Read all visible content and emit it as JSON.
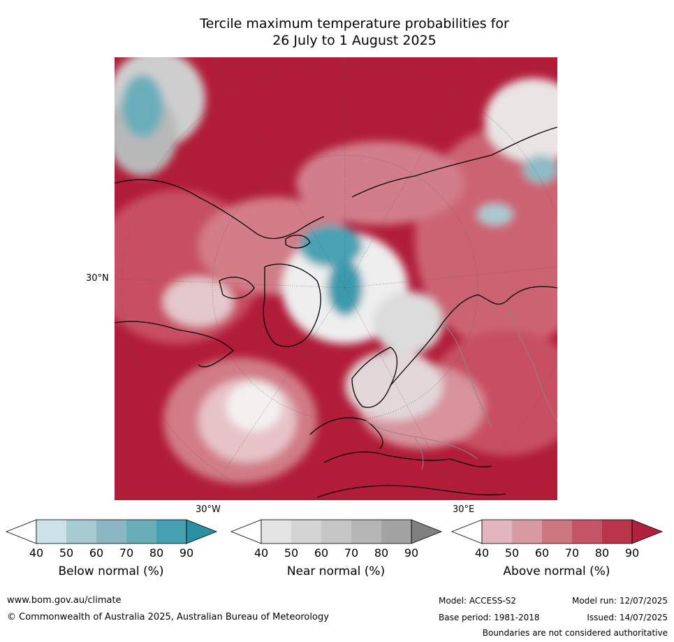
{
  "title_line1": "Tercile maximum temperature probabilities for",
  "title_line2": "26 July to 1 August 2025",
  "map": {
    "projection": "north-polar-stereographic",
    "labels": {
      "lat_30n": "30°N",
      "lon_30w": "30°W",
      "lon_30e": "30°E"
    }
  },
  "legends": [
    {
      "title": "Below normal (%)",
      "ticks": [
        "40",
        "50",
        "60",
        "70",
        "80",
        "90"
      ],
      "colors": [
        "#ffffff",
        "#cbe2e8",
        "#a7c9d0",
        "#8bb7c2",
        "#69adb9",
        "#45a0b1",
        "#2a8fa3"
      ]
    },
    {
      "title": "Near normal (%)",
      "ticks": [
        "40",
        "50",
        "60",
        "70",
        "80",
        "90"
      ],
      "colors": [
        "#ffffff",
        "#e4e4e4",
        "#d4d4d4",
        "#c6c6c6",
        "#b5b5b5",
        "#a3a3a3",
        "#808080"
      ]
    },
    {
      "title": "Above normal (%)",
      "ticks": [
        "40",
        "50",
        "60",
        "70",
        "80",
        "90"
      ],
      "colors": [
        "#ffffff",
        "#e3b6bd",
        "#d89aa3",
        "#cc7680",
        "#c55566",
        "#b8354a",
        "#b0203f"
      ]
    }
  ],
  "footer": {
    "url": "www.bom.gov.au/climate",
    "copyright": "© Commonwealth of Australia 2025, Australian Bureau of Meteorology",
    "model": "Model: ACCESS-S2",
    "base_period": "Base period: 1981-2018",
    "model_run": "Model run: 12/07/2025",
    "issued": "Issued: 14/07/2025",
    "disclaimer": "Boundaries are not considered authoritative"
  }
}
